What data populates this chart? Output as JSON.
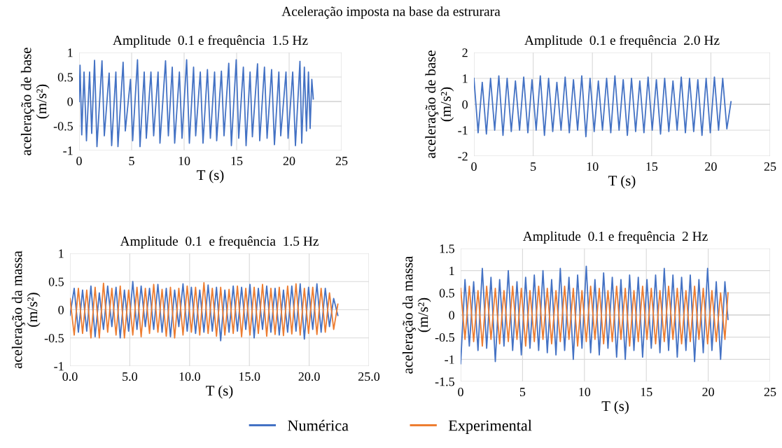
{
  "chart_data": [
    {
      "type": "line",
      "title": "Amplitude  0.1 e frequência  1.5 Hz",
      "xlabel": "T (s)",
      "ylabel": "aceleração de base\n(m/s²)",
      "annotations": [
        "Aceleração imposta na base da estrurara"
      ],
      "xlim": [
        0,
        25
      ],
      "xticks": [
        0,
        5,
        10,
        15,
        20,
        25
      ],
      "ylim": [
        -1,
        1
      ],
      "yticks": [
        -1,
        -0.5,
        0,
        0.5,
        1
      ],
      "grid": true,
      "x": [
        0,
        0.09,
        0.25,
        0.47,
        0.7,
        1.0,
        1.2,
        1.47,
        1.7,
        2.18,
        2.4,
        2.86,
        3.1,
        3.5,
        3.7,
        4.19,
        4.4,
        4.89,
        5.1,
        5.56,
        5.8,
        6.2,
        6.4,
        6.84,
        7.1,
        7.52,
        7.7,
        8.23,
        8.5,
        8.87,
        9.1,
        9.55,
        9.8,
        10.24,
        10.5,
        10.9,
        11.1,
        11.54,
        11.8,
        12.22,
        12.5,
        12.9,
        13.1,
        13.55,
        13.8,
        14.25,
        14.5,
        14.96,
        15.2,
        15.64,
        15.9,
        16.28,
        16.5,
        16.99,
        17.2,
        17.65,
        17.9,
        18.33,
        18.6,
        19.02,
        19.2,
        19.7,
        19.9,
        20.34,
        20.6,
        21.03,
        21.2,
        21.45,
        21.65,
        21.84,
        22.0,
        22.16,
        22.3
      ],
      "series": [
        {
          "color": "#4472c4",
          "values": [
            0,
            0.74,
            -0.68,
            0.6,
            -0.8,
            0.6,
            -0.65,
            0.84,
            -0.92,
            0.83,
            -0.7,
            0.58,
            -0.9,
            0.6,
            -0.92,
            0.8,
            -0.6,
            0.45,
            -0.8,
            0.85,
            -0.92,
            0.6,
            -0.75,
            0.6,
            -0.7,
            0.6,
            -0.85,
            0.83,
            -0.7,
            0.7,
            -0.85,
            0.6,
            -0.75,
            0.85,
            -0.85,
            0.7,
            -0.7,
            0.6,
            -0.85,
            0.65,
            -0.75,
            0.6,
            -0.8,
            0.62,
            -0.7,
            0.78,
            -0.9,
            0.85,
            -0.75,
            0.7,
            -0.9,
            0.6,
            -0.72,
            0.77,
            -0.8,
            0.7,
            -0.75,
            0.65,
            -0.88,
            0.6,
            -0.7,
            0.6,
            -0.75,
            0.6,
            -0.9,
            0.82,
            -0.85,
            0.7,
            -0.6,
            0.6,
            -0.55,
            0.45,
            0.05
          ]
        }
      ]
    },
    {
      "type": "line",
      "title": "Amplitude  0.1 e frequência  2.0 Hz",
      "xlabel": "T (s)",
      "ylabel": "aceleração de base\n(m/s²)",
      "xlim": [
        0,
        25
      ],
      "xticks": [
        0,
        5,
        10,
        15,
        20,
        25
      ],
      "ylim": [
        -2,
        2
      ],
      "yticks": [
        -2,
        -1,
        0,
        1,
        2
      ],
      "grid": true,
      "x": [
        0,
        0.35,
        0.7,
        1.05,
        1.4,
        1.75,
        2.1,
        2.45,
        2.8,
        3.15,
        3.5,
        3.85,
        4.2,
        4.55,
        4.9,
        5.25,
        5.6,
        5.95,
        6.3,
        6.65,
        7.0,
        7.35,
        7.7,
        8.05,
        8.4,
        8.75,
        9.1,
        9.45,
        9.8,
        10.15,
        10.5,
        10.85,
        11.2,
        11.55,
        11.9,
        12.25,
        12.6,
        12.95,
        13.3,
        13.65,
        14.0,
        14.35,
        14.7,
        15.05,
        15.4,
        15.75,
        16.1,
        16.45,
        16.8,
        17.15,
        17.5,
        17.85,
        18.2,
        18.55,
        18.9,
        19.25,
        19.6,
        19.95,
        20.3,
        20.65,
        21.0,
        21.35,
        21.7
      ],
      "series": [
        {
          "color": "#4472c4",
          "values": [
            1.0,
            -1.1,
            0.85,
            -1.15,
            1.0,
            -1.0,
            1.1,
            -1.2,
            1.0,
            -1.05,
            0.9,
            -1.0,
            1.05,
            -1.1,
            0.95,
            -1.0,
            1.1,
            -1.2,
            1.0,
            -1.05,
            0.85,
            -1.0,
            1.05,
            -1.1,
            0.95,
            -1.0,
            1.1,
            -1.25,
            1.0,
            -1.05,
            0.9,
            -1.0,
            1.0,
            -1.1,
            1.1,
            -1.0,
            0.95,
            -1.2,
            1.0,
            -1.05,
            0.9,
            -1.1,
            1.05,
            -1.0,
            0.95,
            -1.15,
            1.0,
            -1.05,
            0.9,
            -1.0,
            1.05,
            -1.1,
            1.0,
            -1.05,
            0.95,
            -1.2,
            1.0,
            -1.1,
            1.05,
            -1.0,
            1.0,
            -0.95,
            0.1
          ]
        }
      ]
    },
    {
      "type": "line",
      "title": "Amplitude  0.1  e frequência  1.5 Hz",
      "xlabel": "T (s)",
      "ylabel": "aceleração da massa\n(m/s²)",
      "xlim": [
        0,
        25
      ],
      "xticks": [
        {
          "value": 0,
          "label": "0.0"
        },
        {
          "value": 5,
          "label": "5.0"
        },
        {
          "value": 10,
          "label": "10.0"
        },
        {
          "value": 15,
          "label": "15.0"
        },
        {
          "value": 20,
          "label": "20.0"
        },
        {
          "value": 25,
          "label": "25.0"
        }
      ],
      "ylim": [
        -1,
        1
      ],
      "yticks": [
        -1,
        -0.5,
        0,
        0.5,
        1
      ],
      "grid": true,
      "legend": "bottom",
      "x": [
        0,
        0.35,
        0.7,
        1.05,
        1.4,
        1.75,
        2.1,
        2.45,
        2.8,
        3.15,
        3.5,
        3.85,
        4.2,
        4.55,
        4.9,
        5.25,
        5.6,
        5.95,
        6.3,
        6.65,
        7.0,
        7.35,
        7.7,
        8.05,
        8.4,
        8.75,
        9.1,
        9.45,
        9.8,
        10.15,
        10.5,
        10.85,
        11.2,
        11.55,
        11.9,
        12.25,
        12.6,
        12.95,
        13.3,
        13.65,
        14.0,
        14.35,
        14.7,
        15.05,
        15.4,
        15.75,
        16.1,
        16.45,
        16.8,
        17.15,
        17.5,
        17.85,
        18.2,
        18.55,
        18.9,
        19.25,
        19.6,
        19.95,
        20.3,
        20.65,
        21.0,
        21.35,
        21.7,
        22.05,
        22.4
      ],
      "series": [
        {
          "name": "Numérica",
          "color": "#4472c4",
          "values": [
            -0.1,
            0.38,
            -0.4,
            0.35,
            -0.38,
            0.42,
            -0.48,
            0.3,
            -0.35,
            0.42,
            -0.3,
            0.4,
            -0.5,
            0.35,
            -0.38,
            0.5,
            -0.35,
            0.42,
            -0.3,
            0.38,
            -0.35,
            0.45,
            -0.4,
            0.38,
            -0.48,
            0.35,
            -0.3,
            0.46,
            -0.38,
            0.4,
            -0.42,
            0.35,
            -0.4,
            0.44,
            -0.38,
            0.4,
            -0.55,
            0.35,
            -0.4,
            0.42,
            -0.38,
            0.4,
            -0.35,
            0.45,
            -0.5,
            0.38,
            -0.35,
            0.42,
            -0.4,
            0.38,
            -0.45,
            0.35,
            -0.4,
            0.42,
            -0.38,
            0.46,
            -0.52,
            0.4,
            -0.35,
            0.46,
            -0.4,
            0.38,
            -0.3,
            0.2,
            -0.1
          ]
        },
        {
          "name": "Experimental",
          "color": "#ed7d31",
          "values": [
            0.2,
            -0.45,
            0.38,
            -0.42,
            0.35,
            -0.5,
            0.4,
            -0.5,
            0.47,
            -0.4,
            0.38,
            -0.45,
            0.42,
            -0.5,
            0.35,
            -0.45,
            0.4,
            -0.48,
            0.38,
            -0.42,
            0.45,
            -0.4,
            0.36,
            -0.47,
            0.4,
            -0.5,
            0.38,
            -0.45,
            0.42,
            -0.4,
            0.4,
            -0.45,
            0.48,
            -0.42,
            0.38,
            -0.47,
            0.4,
            -0.45,
            0.36,
            -0.42,
            0.42,
            -0.48,
            0.38,
            -0.45,
            0.4,
            -0.42,
            0.45,
            -0.47,
            0.38,
            -0.44,
            0.4,
            -0.46,
            0.42,
            -0.43,
            0.46,
            -0.45,
            0.38,
            -0.42,
            0.4,
            -0.44,
            0.38,
            -0.4,
            0.3,
            -0.35,
            0.1
          ]
        }
      ]
    },
    {
      "type": "line",
      "title": "Amplitude  0.1 e frequência  2 Hz",
      "xlabel": "T (s)",
      "ylabel": "aceleração da massa\n(m/s²)",
      "xlim": [
        0,
        25
      ],
      "xticks": [
        0,
        5,
        10,
        15,
        20,
        25
      ],
      "ylim": [
        -1.5,
        1.5
      ],
      "yticks": [
        -1.5,
        -1,
        -0.5,
        0,
        0.5,
        1,
        1.5
      ],
      "grid": true,
      "legend": "bottom",
      "x": [
        0,
        0.35,
        0.7,
        1.05,
        1.4,
        1.75,
        2.1,
        2.45,
        2.8,
        3.15,
        3.5,
        3.85,
        4.2,
        4.55,
        4.9,
        5.25,
        5.6,
        5.95,
        6.3,
        6.65,
        7.0,
        7.35,
        7.7,
        8.05,
        8.4,
        8.75,
        9.1,
        9.45,
        9.8,
        10.15,
        10.5,
        10.85,
        11.2,
        11.55,
        11.9,
        12.25,
        12.6,
        12.95,
        13.3,
        13.65,
        14.0,
        14.35,
        14.7,
        15.05,
        15.4,
        15.75,
        16.1,
        16.45,
        16.8,
        17.15,
        17.5,
        17.85,
        18.2,
        18.55,
        18.9,
        19.25,
        19.6,
        19.95,
        20.3,
        20.65,
        21.0,
        21.35,
        21.6
      ],
      "series": [
        {
          "name": "Numérica",
          "color": "#4472c4",
          "values": [
            -1.1,
            0.8,
            -0.7,
            0.75,
            -0.8,
            1.05,
            -0.75,
            0.85,
            -1.05,
            0.8,
            -0.7,
            1.0,
            -0.8,
            0.75,
            -0.9,
            0.85,
            -0.75,
            0.9,
            -0.8,
            1.0,
            -0.85,
            0.8,
            -0.9,
            1.05,
            -0.8,
            0.85,
            -1.0,
            0.9,
            -0.75,
            1.1,
            -0.85,
            0.8,
            -0.9,
            0.95,
            -0.75,
            0.85,
            -0.95,
            0.8,
            -1.0,
            0.9,
            -0.8,
            0.85,
            -0.95,
            0.8,
            -0.75,
            0.9,
            -0.85,
            1.05,
            -0.8,
            0.9,
            -0.95,
            0.85,
            -0.8,
            0.9,
            -1.05,
            0.8,
            -0.85,
            1.05,
            -0.8,
            0.75,
            -1.0,
            0.75,
            -0.1
          ]
        },
        {
          "name": "Experimental",
          "color": "#ed7d31",
          "values": [
            0.6,
            -0.55,
            0.65,
            -0.6,
            0.55,
            -0.7,
            0.65,
            -0.55,
            0.6,
            -0.65,
            0.55,
            -0.6,
            0.65,
            -0.55,
            0.6,
            -0.7,
            0.55,
            -0.6,
            0.65,
            -0.55,
            0.6,
            -0.65,
            0.55,
            -0.6,
            0.65,
            -0.55,
            0.6,
            -0.7,
            0.55,
            -0.6,
            0.65,
            -0.55,
            0.6,
            -0.65,
            0.55,
            -0.6,
            0.65,
            -0.55,
            0.6,
            -0.7,
            0.55,
            -0.6,
            0.65,
            -0.55,
            0.6,
            -0.65,
            0.55,
            -0.6,
            0.65,
            -0.55,
            0.6,
            -0.65,
            0.55,
            -0.6,
            0.65,
            -0.55,
            0.6,
            -0.65,
            0.55,
            -0.6,
            0.5,
            -0.55,
            0.5
          ]
        }
      ]
    }
  ]
}
